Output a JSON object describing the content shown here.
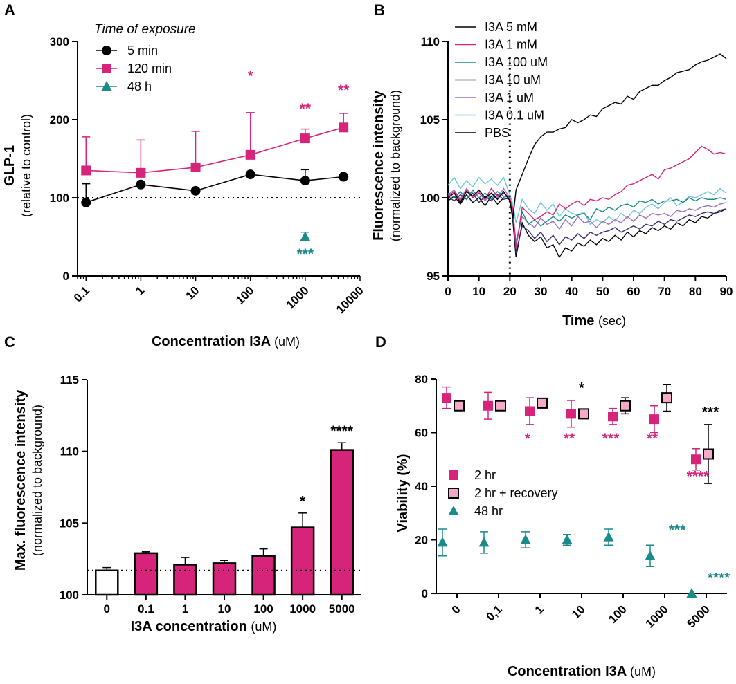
{
  "colors": {
    "black": "#000000",
    "magenta": "#d6247a",
    "teal": "#1a8a8a",
    "pink_fill": "#f4a9c9"
  },
  "chart_data": [
    {
      "panel": "A",
      "type": "scatter",
      "x_scale": "log",
      "xlim": [
        0.07,
        10000
      ],
      "ylim": [
        0,
        300
      ],
      "yticks": [
        0,
        100,
        200,
        300
      ],
      "xticks": [
        "0.1",
        "1",
        "10",
        "100",
        "1000",
        "10000"
      ],
      "xlabel_bold": "Concentration I3A",
      "xlabel_unit": "(uM)",
      "ylabel": "GLP-1",
      "ylabel_sub": "(relative to control)",
      "legend_title": "Time of exposure",
      "baseline": 100,
      "series": [
        {
          "name": "5 min",
          "color": "black",
          "marker": "circle",
          "x": [
            0.1,
            1,
            10,
            100,
            1000,
            5000
          ],
          "y": [
            94,
            117,
            109,
            130,
            122,
            127
          ],
          "err": [
            24,
            0,
            0,
            0,
            14,
            0
          ]
        },
        {
          "name": "120 min",
          "color": "magenta",
          "marker": "square",
          "x": [
            0.1,
            1,
            10,
            100,
            1000,
            5000
          ],
          "y": [
            135,
            132,
            139,
            155,
            176,
            190
          ],
          "err": [
            43,
            42,
            46,
            54,
            12,
            18
          ]
        },
        {
          "name": "48 h",
          "color": "teal",
          "marker": "triangle",
          "x": [
            1000
          ],
          "y": [
            50
          ],
          "err": [
            6
          ]
        }
      ],
      "annotations": [
        {
          "text": "*",
          "x": 100,
          "y": 250,
          "color": "magenta"
        },
        {
          "text": "**",
          "x": 1000,
          "y": 208,
          "color": "magenta"
        },
        {
          "text": "**",
          "x": 5000,
          "y": 232,
          "color": "magenta"
        },
        {
          "text": "***",
          "x": 1000,
          "y": 22,
          "color": "teal"
        }
      ]
    },
    {
      "panel": "B",
      "type": "line",
      "xlim": [
        0,
        90
      ],
      "ylim": [
        95,
        110
      ],
      "xticks": [
        0,
        10,
        20,
        30,
        40,
        50,
        60,
        70,
        80,
        90
      ],
      "yticks": [
        95,
        100,
        105,
        110
      ],
      "xlabel_bold": "Time",
      "xlabel_unit": "(sec)",
      "ylabel": "Fluorescence intensity",
      "ylabel_sub": "(normalized to background)",
      "vline_x": 20,
      "series": [
        {
          "name": "I3A 5 mM",
          "color": "#000000",
          "x": [
            0,
            2,
            4,
            6,
            8,
            10,
            12,
            14,
            16,
            18,
            20,
            21,
            22,
            24,
            26,
            28,
            30,
            32,
            34,
            36,
            38,
            40,
            42,
            44,
            46,
            48,
            50,
            52,
            54,
            56,
            58,
            60,
            62,
            64,
            66,
            68,
            70,
            72,
            74,
            76,
            78,
            80,
            82,
            84,
            86,
            88,
            90
          ],
          "y": [
            100.0,
            100.3,
            99.7,
            100.4,
            100.1,
            100.5,
            100.0,
            100.3,
            99.9,
            100.4,
            99.8,
            98.7,
            100.5,
            101.5,
            102.5,
            103.4,
            103.9,
            104.2,
            104.2,
            104.4,
            104.5,
            105.0,
            104.8,
            105.0,
            105.3,
            105.2,
            105.7,
            105.9,
            106.1,
            106.0,
            106.5,
            106.3,
            106.8,
            107.0,
            107.2,
            107.2,
            107.5,
            107.7,
            108.0,
            108.1,
            108.2,
            108.5,
            108.7,
            108.8,
            109.0,
            109.2,
            108.9
          ]
        },
        {
          "name": "I3A 1 mM",
          "color": "#d6247a",
          "x": [
            0,
            2,
            4,
            6,
            8,
            10,
            12,
            14,
            16,
            18,
            20,
            21,
            22,
            24,
            26,
            28,
            30,
            32,
            34,
            36,
            38,
            40,
            42,
            44,
            46,
            48,
            50,
            52,
            54,
            56,
            58,
            60,
            62,
            64,
            66,
            68,
            70,
            72,
            74,
            76,
            78,
            80,
            82,
            84,
            86,
            88,
            90
          ],
          "y": [
            100.1,
            100.4,
            99.8,
            100.5,
            100.0,
            100.3,
            99.9,
            100.6,
            100.1,
            100.3,
            100.0,
            99.3,
            96.8,
            99.4,
            99.0,
            98.6,
            98.8,
            99.1,
            98.9,
            99.6,
            99.3,
            99.6,
            99.8,
            99.5,
            99.9,
            99.8,
            100.0,
            99.9,
            100.2,
            100.4,
            100.8,
            100.9,
            101.1,
            101.3,
            101.5,
            101.2,
            101.8,
            101.9,
            102.1,
            102.3,
            102.5,
            102.9,
            103.3,
            103.1,
            102.8,
            102.9,
            102.8
          ]
        },
        {
          "name": "I3A 100 uM",
          "color": "#1a8a8a",
          "x": [
            0,
            2,
            4,
            6,
            8,
            10,
            12,
            14,
            16,
            18,
            20,
            21,
            22,
            24,
            26,
            28,
            30,
            32,
            34,
            36,
            38,
            40,
            42,
            44,
            46,
            48,
            50,
            52,
            54,
            56,
            58,
            60,
            62,
            64,
            66,
            68,
            70,
            72,
            74,
            76,
            78,
            80,
            82,
            84,
            86,
            88,
            90
          ],
          "y": [
            100.3,
            100.0,
            100.4,
            99.9,
            100.5,
            100.0,
            100.3,
            99.9,
            100.4,
            100.1,
            100.0,
            99.2,
            96.9,
            99.1,
            98.3,
            98.6,
            98.2,
            98.5,
            98.8,
            98.5,
            98.9,
            98.7,
            98.9,
            99.0,
            98.6,
            99.3,
            99.1,
            99.4,
            99.2,
            99.5,
            99.6,
            99.4,
            99.8,
            99.7,
            99.9,
            99.6,
            99.8,
            99.8,
            99.9,
            99.7,
            100.0,
            99.8,
            100.0,
            99.9,
            99.9,
            100.0,
            99.9
          ]
        },
        {
          "name": "I3A 10 uM",
          "color": "#3b2a7a",
          "x": [
            0,
            2,
            4,
            6,
            8,
            10,
            12,
            14,
            16,
            18,
            20,
            21,
            22,
            24,
            26,
            28,
            30,
            32,
            34,
            36,
            38,
            40,
            42,
            44,
            46,
            48,
            50,
            52,
            54,
            56,
            58,
            60,
            62,
            64,
            66,
            68,
            70,
            72,
            74,
            76,
            78,
            80,
            82,
            84,
            86,
            88,
            90
          ],
          "y": [
            100.1,
            99.8,
            100.2,
            99.9,
            100.3,
            99.7,
            100.1,
            99.8,
            100.2,
            99.9,
            100.0,
            99.0,
            96.5,
            98.2,
            97.9,
            97.4,
            97.8,
            97.2,
            97.6,
            97.0,
            97.5,
            97.3,
            97.7,
            97.4,
            97.8,
            97.6,
            97.8,
            97.9,
            98.1,
            97.8,
            98.0,
            98.2,
            98.0,
            98.3,
            98.2,
            98.5,
            98.3,
            98.6,
            98.5,
            98.7,
            98.9,
            98.8,
            99.0,
            99.1,
            99.0,
            99.2,
            99.3
          ]
        },
        {
          "name": "I3A 1 uM",
          "color": "#9a6fc0",
          "x": [
            0,
            2,
            4,
            6,
            8,
            10,
            12,
            14,
            16,
            18,
            20,
            21,
            22,
            24,
            26,
            28,
            30,
            32,
            34,
            36,
            38,
            40,
            42,
            44,
            46,
            48,
            50,
            52,
            54,
            56,
            58,
            60,
            62,
            64,
            66,
            68,
            70,
            72,
            74,
            76,
            78,
            80,
            82,
            84,
            86,
            88,
            90
          ],
          "y": [
            100.2,
            100.5,
            99.9,
            100.6,
            100.1,
            100.4,
            99.8,
            100.3,
            100.0,
            100.6,
            100.0,
            98.8,
            97.2,
            98.8,
            98.4,
            98.1,
            98.7,
            98.3,
            98.5,
            98.0,
            98.6,
            98.2,
            98.8,
            98.4,
            98.5,
            98.1,
            98.5,
            98.3,
            98.6,
            98.4,
            98.8,
            98.5,
            98.9,
            98.7,
            99.0,
            98.9,
            99.0,
            98.8,
            99.2,
            99.1,
            99.3,
            99.2,
            99.4,
            99.5,
            99.4,
            99.6,
            99.7
          ]
        },
        {
          "name": "I3A 0.1 uM",
          "color": "#6cc6e0",
          "x": [
            0,
            2,
            4,
            6,
            8,
            10,
            12,
            14,
            16,
            18,
            20,
            21,
            22,
            24,
            26,
            28,
            30,
            32,
            34,
            36,
            38,
            40,
            42,
            44,
            46,
            48,
            50,
            52,
            54,
            56,
            58,
            60,
            62,
            64,
            66,
            68,
            70,
            72,
            74,
            76,
            78,
            80,
            82,
            84,
            86,
            88,
            90
          ],
          "y": [
            100.8,
            101.3,
            100.6,
            101.1,
            100.7,
            101.3,
            100.9,
            101.2,
            100.8,
            101.3,
            100.2,
            99.6,
            98.4,
            99.9,
            99.3,
            99.0,
            99.7,
            99.2,
            99.6,
            98.8,
            99.3,
            99.0,
            98.9,
            99.1,
            98.3,
            98.6,
            98.4,
            98.8,
            98.5,
            99.0,
            98.7,
            99.2,
            99.0,
            99.4,
            99.6,
            99.3,
            99.7,
            100.0,
            99.5,
            99.7,
            100.1,
            100.0,
            100.2,
            100.4,
            100.2,
            100.6,
            100.3
          ]
        },
        {
          "name": "PBS",
          "color": "#000000",
          "x": [
            0,
            2,
            4,
            6,
            8,
            10,
            12,
            14,
            16,
            18,
            20,
            21,
            22,
            24,
            26,
            28,
            30,
            32,
            34,
            36,
            38,
            40,
            42,
            44,
            46,
            48,
            50,
            52,
            54,
            56,
            58,
            60,
            62,
            64,
            66,
            68,
            70,
            72,
            74,
            76,
            78,
            80,
            82,
            84,
            86,
            88,
            90
          ],
          "y": [
            99.8,
            100.1,
            99.6,
            100.2,
            99.7,
            100.0,
            99.5,
            100.1,
            99.6,
            100.0,
            99.9,
            98.5,
            96.2,
            98.4,
            97.6,
            97.2,
            97.5,
            96.8,
            97.0,
            96.2,
            96.8,
            96.6,
            97.1,
            96.9,
            97.3,
            97.0,
            97.4,
            97.2,
            97.6,
            97.3,
            97.8,
            97.5,
            97.9,
            97.7,
            98.1,
            97.9,
            98.2,
            98.0,
            98.4,
            98.2,
            98.6,
            98.4,
            98.8,
            98.7,
            99.0,
            99.1,
            99.3
          ]
        }
      ]
    },
    {
      "panel": "C",
      "type": "bar",
      "categories": [
        "0",
        "0.1",
        "1",
        "10",
        "100",
        "1000",
        "5000"
      ],
      "values": [
        101.7,
        102.9,
        102.1,
        102.2,
        102.7,
        104.7,
        110.1
      ],
      "err": [
        0.2,
        0.1,
        0.5,
        0.2,
        0.5,
        1.0,
        0.5
      ],
      "fills": [
        "white",
        "magenta",
        "magenta",
        "magenta",
        "magenta",
        "magenta",
        "magenta"
      ],
      "ylim": [
        100,
        115
      ],
      "yticks": [
        100,
        105,
        110,
        115
      ],
      "baseline": 101.7,
      "xlabel_bold": "I3A concentration",
      "xlabel_unit": "(uM)",
      "ylabel": "Max. fluorescence intensity",
      "ylabel_sub": "(normalized to background)",
      "annotations": [
        {
          "text": "*",
          "category": "1000",
          "y": 106.2,
          "color": "black"
        },
        {
          "text": "****",
          "category": "5000",
          "y": 111.1,
          "color": "black"
        }
      ]
    },
    {
      "panel": "D",
      "type": "scatter",
      "categories": [
        "0",
        "0,1",
        "1",
        "10",
        "100",
        "1000",
        "5000"
      ],
      "ylim": [
        0,
        80
      ],
      "yticks": [
        0,
        20,
        40,
        60,
        80
      ],
      "xlabel_bold": "Concentration I3A",
      "xlabel_unit": "(uM)",
      "ylabel": "Viability (%)",
      "series": [
        {
          "name": "2 hr",
          "color": "magenta",
          "marker": "square",
          "values": [
            73,
            70,
            68,
            67,
            66,
            65,
            50
          ],
          "err": [
            4,
            5,
            5,
            5,
            3,
            5,
            4
          ]
        },
        {
          "name": "2 hr + recovery",
          "color": "pink_fill",
          "marker": "square-outlined",
          "values": [
            70,
            70,
            71,
            67,
            70,
            73,
            52
          ],
          "err": [
            1,
            1,
            1,
            1,
            3,
            5,
            11
          ]
        },
        {
          "name": "48 hr",
          "color": "teal",
          "marker": "triangle",
          "values": [
            19,
            19,
            20,
            20,
            21,
            14,
            0
          ],
          "err": [
            5,
            4,
            3,
            2,
            3,
            4,
            0
          ]
        }
      ],
      "annotations": [
        {
          "text": "*",
          "cat": 2,
          "offset": -0.3,
          "y": 56,
          "color": "magenta"
        },
        {
          "text": "**",
          "cat": 3,
          "offset": -0.3,
          "y": 56,
          "color": "magenta"
        },
        {
          "text": "*",
          "cat": 3,
          "offset": 0,
          "y": 75,
          "color": "black"
        },
        {
          "text": "***",
          "cat": 4,
          "offset": -0.3,
          "y": 56,
          "color": "magenta"
        },
        {
          "text": "**",
          "cat": 5,
          "offset": -0.3,
          "y": 56,
          "color": "magenta"
        },
        {
          "text": "***",
          "cat": 6,
          "offset": 0.1,
          "y": 66,
          "color": "black"
        },
        {
          "text": "****",
          "cat": 6,
          "offset": -0.2,
          "y": 42,
          "color": "magenta"
        },
        {
          "text": "***",
          "cat": 5,
          "offset": 0.3,
          "y": 22,
          "color": "teal"
        },
        {
          "text": "****",
          "cat": 6,
          "offset": 0.3,
          "y": 4,
          "color": "teal"
        }
      ]
    }
  ]
}
